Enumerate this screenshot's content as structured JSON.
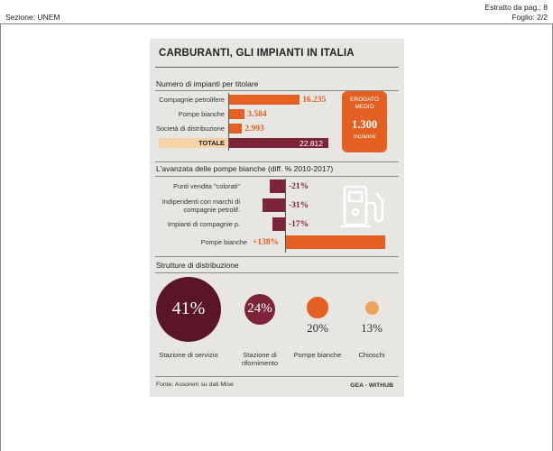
{
  "header": {
    "section": "Sezione: UNEM",
    "extract": "Estratto da pag.: 8",
    "sheet": "Foglio: 2/2"
  },
  "infographic": {
    "title": "CARBURANTI, GLI IMPIANTI IN ITALIA",
    "erogato": {
      "label_line1": "EROGATO",
      "label_line2": "MEDIO",
      "value": "1.300",
      "unit": "mc/anno"
    },
    "source": "Fonte: Assorem su dati Mise",
    "credit": "GEA - WITHUB"
  },
  "colors": {
    "orange": "#e35f22",
    "maroon": "#7e2438",
    "dark_maroon": "#5a1528",
    "light_orange": "#f0a15a",
    "total_fill": "#f6d2a6",
    "panel": "#e8e6e2"
  },
  "chart_data": [
    {
      "type": "bar",
      "title": "Numero di impianti per titolare",
      "categories": [
        "Compagnie petrolifere",
        "Pompe bianche",
        "Società di distribuzione",
        "TOTALE"
      ],
      "values": [
        16235,
        3584,
        2993,
        22812
      ],
      "value_labels": [
        "16.235",
        "3.584",
        "2.993",
        "22.812"
      ]
    },
    {
      "type": "bar",
      "title": "L'avanzata delle pompe bianche (diff. % 2010-2017)",
      "categories": [
        "Punti vendita \"colorati\"",
        "Indipendenti con marchi di compagnie petrolif.",
        "Impianti di compagnie p.",
        "Pompe bianche"
      ],
      "values": [
        -21,
        -31,
        -17,
        138
      ],
      "value_labels": [
        "-21%",
        "-31%",
        "-17%",
        "+138%"
      ]
    },
    {
      "type": "pie",
      "title": "Strutture di distribuzione",
      "categories": [
        "Stazione di servizio",
        "Stazione di rifornimento",
        "Pompe bianche",
        "Chioschi"
      ],
      "values": [
        41,
        24,
        20,
        13
      ],
      "value_labels": [
        "41%",
        "24%",
        "20%",
        "13%"
      ]
    }
  ]
}
